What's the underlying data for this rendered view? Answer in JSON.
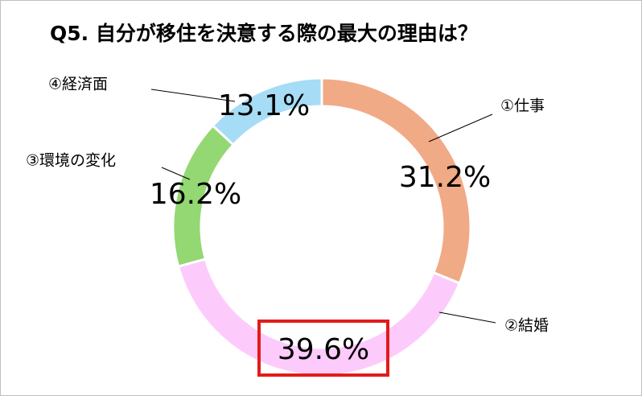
{
  "chart_data": {
    "type": "donut",
    "title": "Q5. 自分が移住を決意する際の最大の理由は？",
    "categories": [
      "①仕事",
      "②結婚",
      "③環境の変化",
      "④経済面"
    ],
    "values": [
      31.2,
      39.6,
      16.2,
      13.1
    ],
    "value_labels": [
      "31.2%",
      "39.6%",
      "16.2%",
      "13.1%"
    ],
    "colors": [
      "#f1aa86",
      "#fccbfb",
      "#93d873",
      "#a6dcf5"
    ]
  }
}
